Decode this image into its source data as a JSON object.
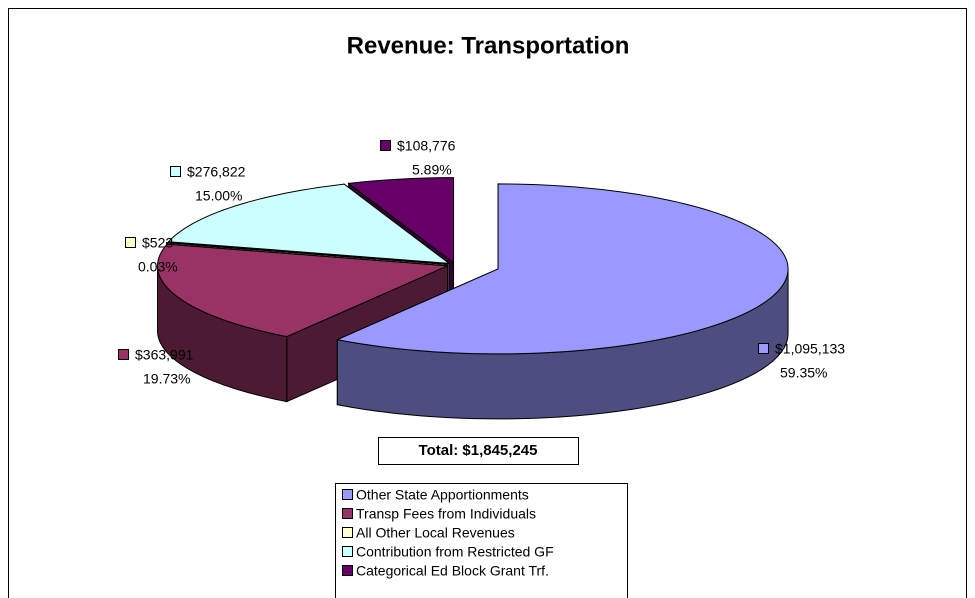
{
  "chart_data": {
    "type": "pie3d",
    "title": "Revenue:  Transportation",
    "categories": [
      "Other State Apportionments",
      "Transp Fees from Individuals",
      "All Other Local Revenues",
      "Contribution from Restricted GF",
      "Categorical Ed Block Grant Trf."
    ],
    "values": [
      59.35,
      19.73,
      0.03,
      15.0,
      5.89
    ],
    "value_labels": [
      "59.35%",
      "19.73%",
      "0.03%",
      "15.00%",
      "5.89%"
    ],
    "amounts": [
      1095133,
      363991,
      523,
      276822,
      108776
    ],
    "amount_labels": [
      "$1,095,133",
      "$363,991",
      "$523",
      "$276,822",
      "$108,776"
    ],
    "colors": [
      "#9999ff",
      "#993366",
      "#ffffcc",
      "#ccffff",
      "#660066"
    ],
    "total_label": "Total:  $1,845,245"
  }
}
